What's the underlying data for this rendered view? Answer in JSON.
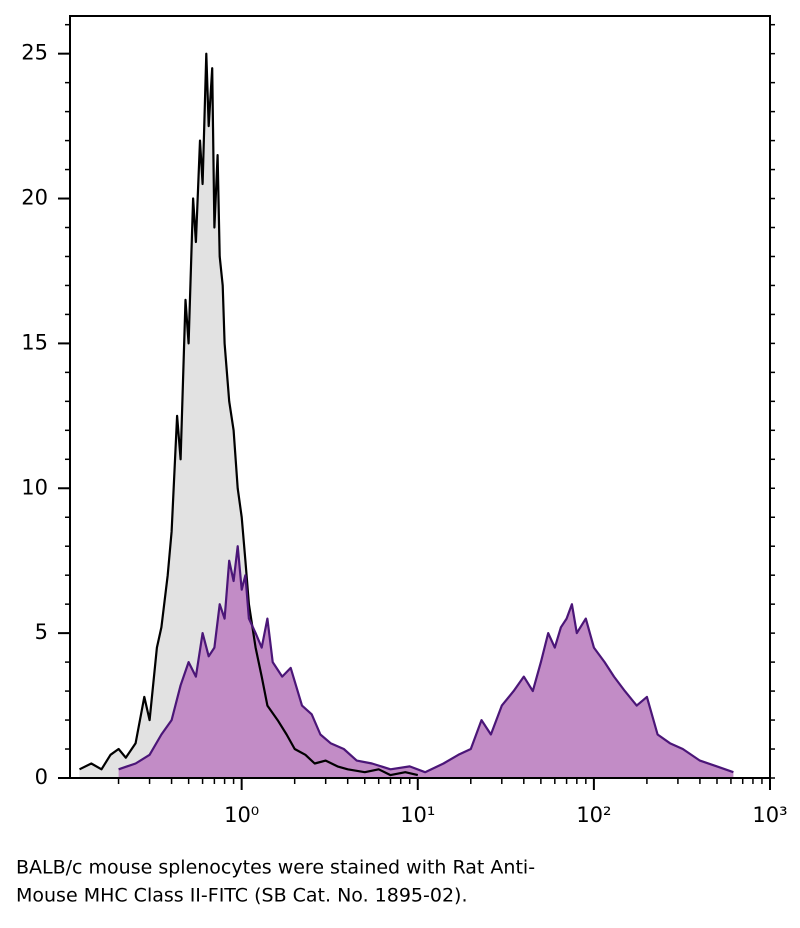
{
  "chart_data": {
    "type": "histogram-overlay",
    "caption": [
      "BALB/c mouse splenocytes were stained with Rat Anti-",
      "Mouse MHC Class II-FITC (SB Cat. No. 1895-02)."
    ],
    "xscale": "log",
    "xlim": [
      0.106,
      1000
    ],
    "ylim": [
      0,
      26.3
    ],
    "xticks": [
      {
        "value": 1,
        "label": "10⁰"
      },
      {
        "value": 10,
        "label": "10¹"
      },
      {
        "value": 100,
        "label": "10²"
      },
      {
        "value": 1000,
        "label": "10³"
      }
    ],
    "yticks": [
      0,
      5,
      10,
      15,
      20,
      25
    ],
    "series": [
      {
        "color": "#000000",
        "fill": "#e2e2e2",
        "x": [
          0.12,
          0.14,
          0.16,
          0.18,
          0.2,
          0.22,
          0.25,
          0.28,
          0.3,
          0.33,
          0.35,
          0.38,
          0.4,
          0.43,
          0.45,
          0.48,
          0.5,
          0.53,
          0.55,
          0.58,
          0.6,
          0.63,
          0.65,
          0.68,
          0.7,
          0.73,
          0.75,
          0.78,
          0.8,
          0.85,
          0.9,
          0.95,
          1.0,
          1.05,
          1.1,
          1.2,
          1.3,
          1.4,
          1.6,
          1.8,
          2.0,
          2.3,
          2.6,
          3.0,
          3.5,
          4.0,
          5.0,
          6.0,
          7.0,
          8.5,
          10.0
        ],
        "values": [
          0.3,
          0.5,
          0.3,
          0.8,
          1.0,
          0.7,
          1.2,
          2.8,
          2.0,
          4.5,
          5.2,
          7.0,
          8.5,
          12.5,
          11.0,
          16.5,
          15.0,
          20.0,
          18.5,
          22.0,
          20.5,
          25.0,
          22.5,
          24.5,
          19.0,
          21.5,
          18.0,
          17.0,
          15.0,
          13.0,
          12.0,
          10.0,
          9.0,
          7.5,
          6.0,
          4.5,
          3.5,
          2.5,
          2.0,
          1.5,
          1.0,
          0.8,
          0.5,
          0.6,
          0.4,
          0.3,
          0.2,
          0.3,
          0.1,
          0.2,
          0.1
        ]
      },
      {
        "color": "#4b1678",
        "fill": "#c28cc6",
        "x": [
          0.2,
          0.25,
          0.3,
          0.35,
          0.4,
          0.45,
          0.5,
          0.55,
          0.6,
          0.65,
          0.7,
          0.75,
          0.8,
          0.85,
          0.9,
          0.95,
          1.0,
          1.05,
          1.1,
          1.2,
          1.3,
          1.4,
          1.5,
          1.7,
          1.9,
          2.2,
          2.5,
          2.8,
          3.2,
          3.8,
          4.5,
          5.5,
          7.0,
          9.0,
          11.0,
          14.0,
          17.0,
          20.0,
          23.0,
          26.0,
          30.0,
          35.0,
          40.0,
          45.0,
          50.0,
          55.0,
          60.0,
          65.0,
          70.0,
          75.0,
          80.0,
          90.0,
          100.0,
          115.0,
          130.0,
          150.0,
          175.0,
          200.0,
          230.0,
          270.0,
          320.0,
          400.0,
          500.0,
          620.0
        ],
        "values": [
          0.3,
          0.5,
          0.8,
          1.5,
          2.0,
          3.2,
          4.0,
          3.5,
          5.0,
          4.2,
          4.5,
          6.0,
          5.5,
          7.5,
          6.8,
          8.0,
          6.5,
          7.0,
          5.5,
          5.0,
          4.5,
          5.5,
          4.0,
          3.5,
          3.8,
          2.5,
          2.2,
          1.5,
          1.2,
          1.0,
          0.6,
          0.5,
          0.3,
          0.4,
          0.2,
          0.5,
          0.8,
          1.0,
          2.0,
          1.5,
          2.5,
          3.0,
          3.5,
          3.0,
          4.0,
          5.0,
          4.5,
          5.2,
          5.5,
          6.0,
          5.0,
          5.5,
          4.5,
          4.0,
          3.5,
          3.0,
          2.5,
          2.8,
          1.5,
          1.2,
          1.0,
          0.6,
          0.4,
          0.2
        ]
      }
    ]
  }
}
